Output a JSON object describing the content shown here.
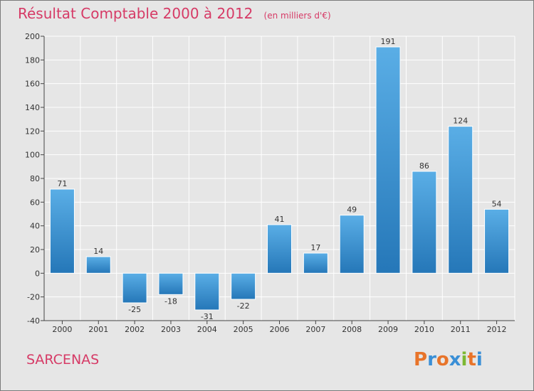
{
  "title": "Résultat Comptable 2000 à 2012",
  "subtitle": "(en milliers d'€)",
  "commune": "SARCENAS",
  "logo": {
    "text": "Proxiti",
    "letter_colors": [
      "#e8742a",
      "#3a8fd6",
      "#e8742a",
      "#3a8fd6",
      "#7cb833",
      "#e8742a",
      "#3a8fd6"
    ]
  },
  "colors": {
    "bar_top": "#5aaee6",
    "bar_bottom": "#2577b8",
    "title": "#d63a66",
    "grid": "#ffffff",
    "axis": "#444444"
  },
  "chart_data": {
    "type": "bar",
    "title": "Résultat Comptable 2000 à 2012",
    "subtitle": "(en milliers d'€)",
    "xlabel": "",
    "ylabel": "",
    "categories": [
      "2000",
      "2001",
      "2002",
      "2003",
      "2004",
      "2005",
      "2006",
      "2007",
      "2008",
      "2009",
      "2010",
      "2011",
      "2012"
    ],
    "values": [
      71,
      14,
      -25,
      -18,
      -31,
      -22,
      41,
      17,
      49,
      191,
      86,
      124,
      54
    ],
    "ylim": [
      -40,
      200
    ],
    "yticks": [
      -40,
      -20,
      0,
      20,
      40,
      60,
      80,
      100,
      120,
      140,
      160,
      180,
      200
    ],
    "grid": true
  }
}
